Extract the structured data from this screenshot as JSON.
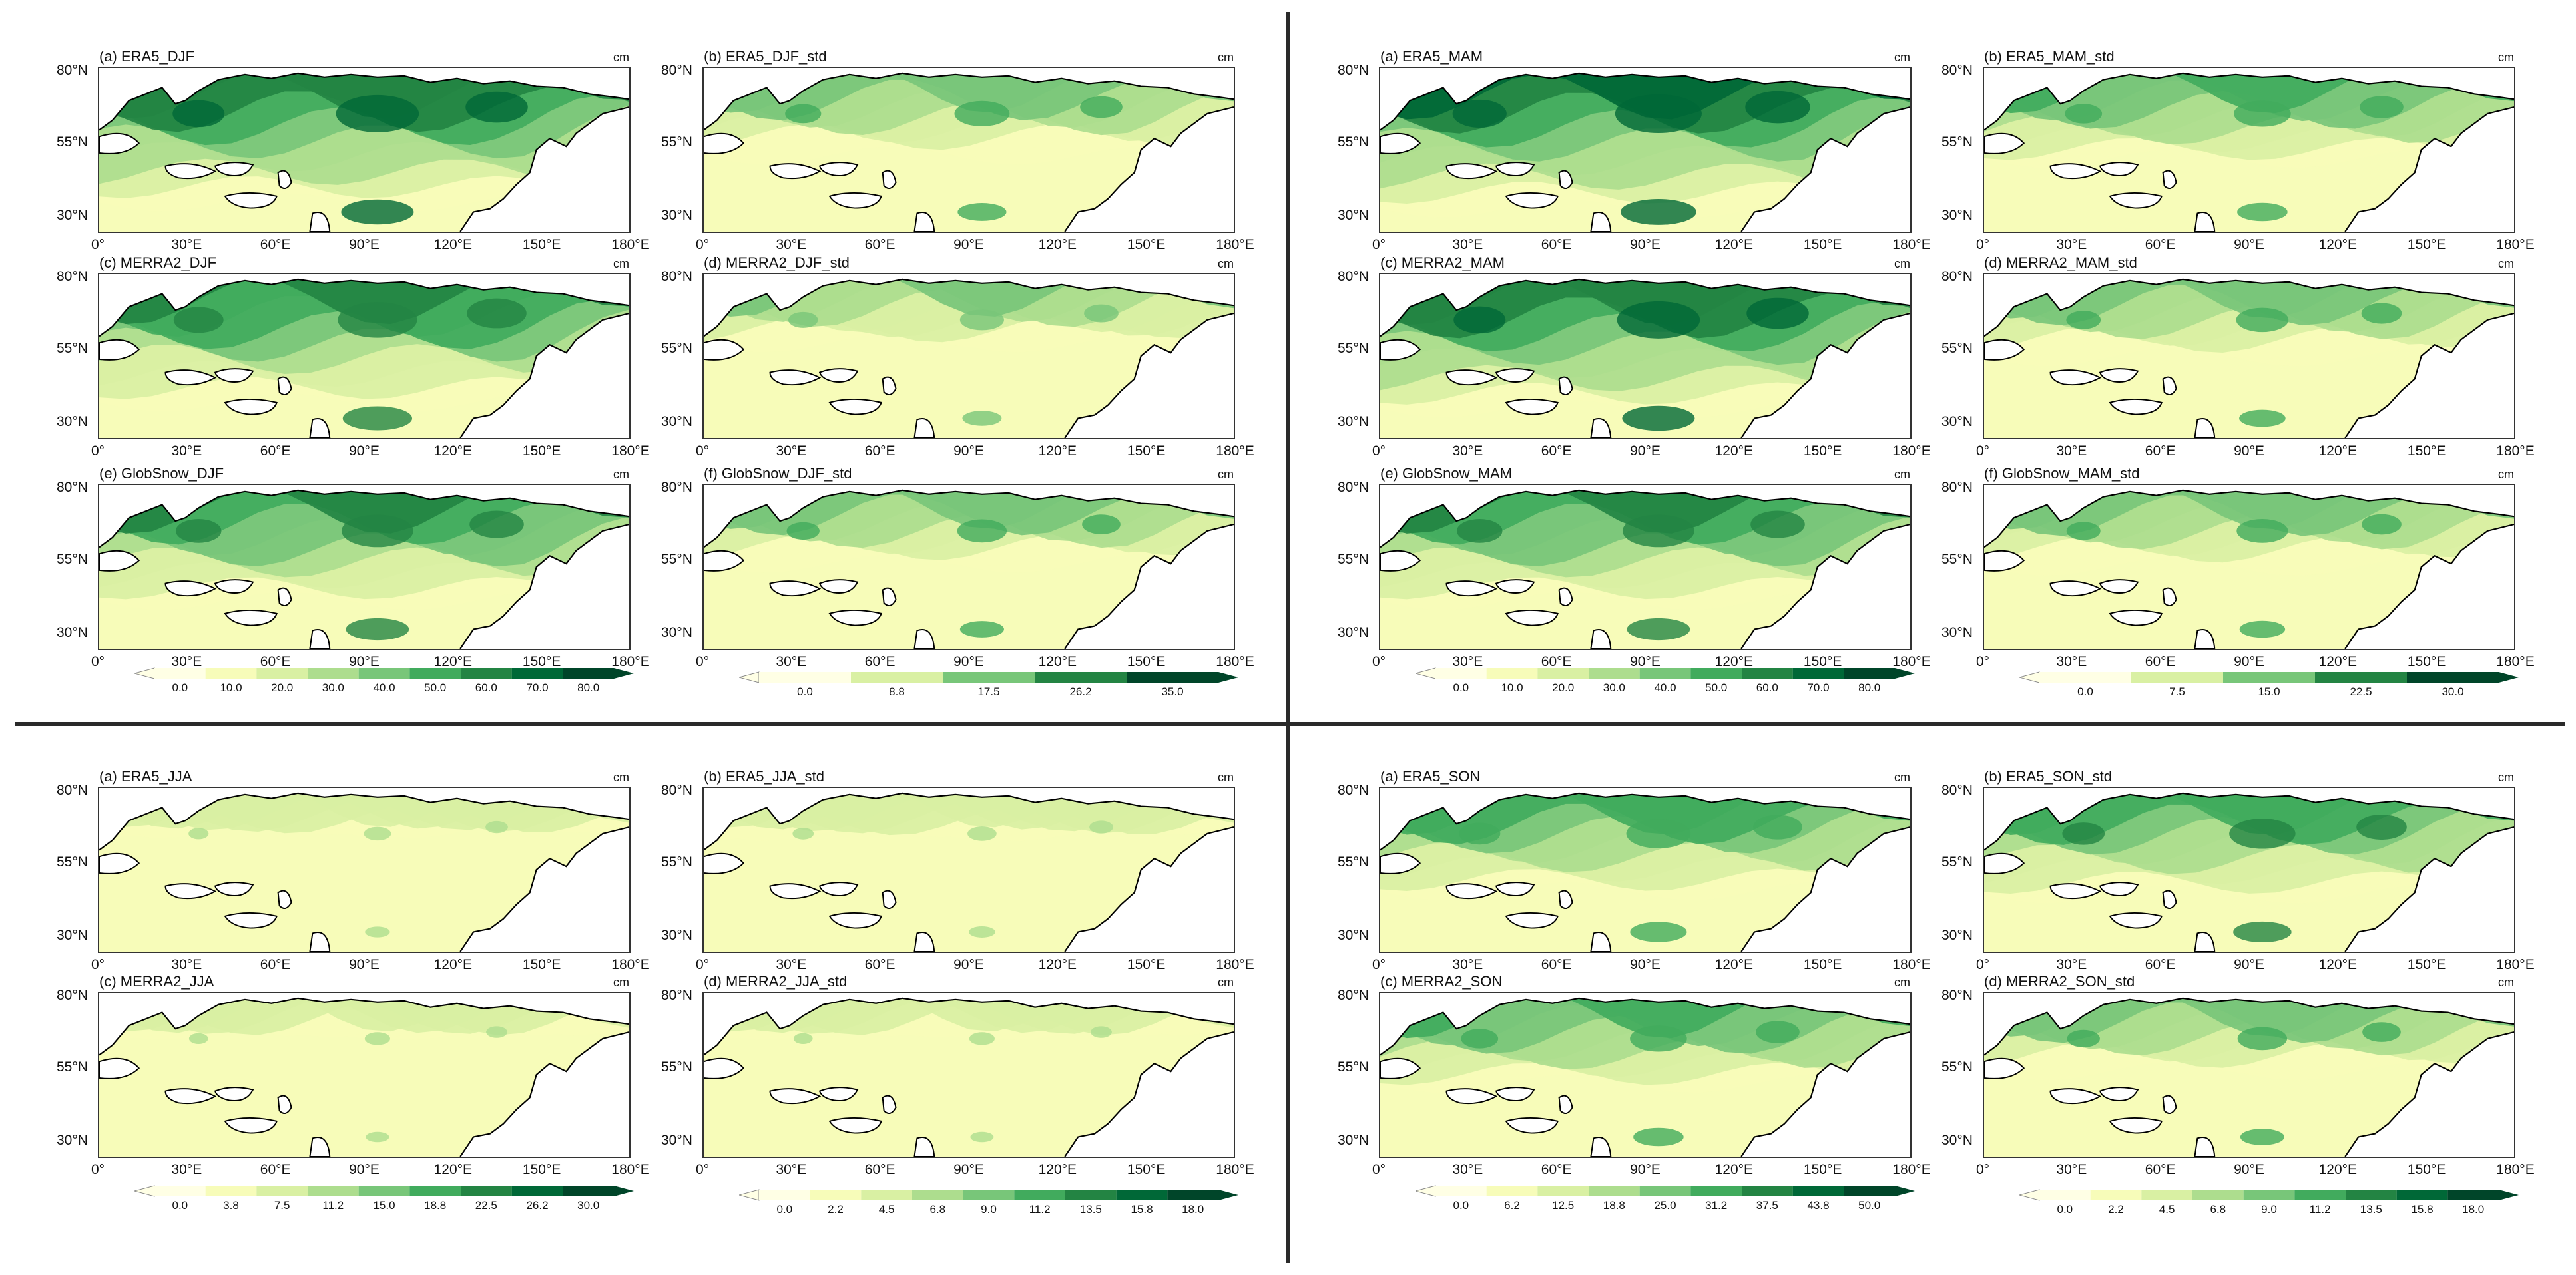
{
  "palette": [
    "#ffffe5",
    "#f7fcb9",
    "#d9f0a3",
    "#addd8e",
    "#78c679",
    "#41ab5d",
    "#238443",
    "#006837",
    "#004529"
  ],
  "unit": "cm",
  "lat_ticks": [
    "80°N",
    "55°N",
    "30°N"
  ],
  "lon_ticks": [
    "0°",
    "30°E",
    "60°E",
    "90°E",
    "120°E",
    "150°E",
    "180°E"
  ],
  "quadrants": [
    {
      "id": "DJF",
      "colorbars": [
        {
          "labels": [
            "0.0",
            "10.0",
            "20.0",
            "30.0",
            "40.0",
            "50.0",
            "60.0",
            "70.0",
            "80.0"
          ]
        },
        {
          "labels": [
            "0.0",
            "8.8",
            "17.5",
            "26.2",
            "35.0"
          ]
        }
      ],
      "panels": [
        {
          "title": "(a) ERA5_DJF",
          "level": 0.78
        },
        {
          "title": "(b) ERA5_DJF_std",
          "level": 0.48
        },
        {
          "title": "(c) MERRA2_DJF",
          "level": 0.74
        },
        {
          "title": "(d) MERRA2_DJF_std",
          "level": 0.36
        },
        {
          "title": "(e) GlobSnow_DJF",
          "level": 0.66
        },
        {
          "title": "(f) GlobSnow_DJF_std",
          "level": 0.42
        }
      ]
    },
    {
      "id": "MAM",
      "colorbars": [
        {
          "labels": [
            "0.0",
            "10.0",
            "20.0",
            "30.0",
            "40.0",
            "50.0",
            "60.0",
            "70.0",
            "80.0"
          ]
        },
        {
          "labels": [
            "0.0",
            "7.5",
            "15.0",
            "22.5",
            "30.0"
          ]
        }
      ],
      "panels": [
        {
          "title": "(a) ERA5_MAM",
          "level": 0.82
        },
        {
          "title": "(b) ERA5_MAM_std",
          "level": 0.5
        },
        {
          "title": "(c) MERRA2_MAM",
          "level": 0.78
        },
        {
          "title": "(d) MERRA2_MAM_std",
          "level": 0.45
        },
        {
          "title": "(e) GlobSnow_MAM",
          "level": 0.66
        },
        {
          "title": "(f) GlobSnow_MAM_std",
          "level": 0.44
        }
      ]
    },
    {
      "id": "JJA",
      "colorbars": [
        {
          "labels": [
            "0.0",
            "3.8",
            "7.5",
            "11.2",
            "15.0",
            "18.8",
            "22.5",
            "26.2",
            "30.0"
          ]
        },
        {
          "labels": [
            "0.0",
            "2.2",
            "4.5",
            "6.8",
            "9.0",
            "11.2",
            "13.5",
            "15.8",
            "18.0"
          ]
        }
      ],
      "panels": [
        {
          "title": "(a) ERA5_JJA",
          "level": 0.18
        },
        {
          "title": "(b) ERA5_JJA_std",
          "level": 0.2
        },
        {
          "title": "(c) MERRA2_JJA",
          "level": 0.16
        },
        {
          "title": "(d) MERRA2_JJA_std",
          "level": 0.16
        }
      ]
    },
    {
      "id": "SON",
      "colorbars": [
        {
          "labels": [
            "0.0",
            "6.2",
            "12.5",
            "18.8",
            "25.0",
            "31.2",
            "37.5",
            "43.8",
            "50.0"
          ]
        },
        {
          "labels": [
            "0.0",
            "2.2",
            "4.5",
            "6.8",
            "9.0",
            "11.2",
            "13.5",
            "15.8",
            "18.0"
          ]
        }
      ],
      "panels": [
        {
          "title": "(a) ERA5_SON",
          "level": 0.58
        },
        {
          "title": "(b) ERA5_SON_std",
          "level": 0.6
        },
        {
          "title": "(c) MERRA2_SON",
          "level": 0.5
        },
        {
          "title": "(d) MERRA2_SON_std",
          "level": 0.42
        }
      ]
    }
  ]
}
